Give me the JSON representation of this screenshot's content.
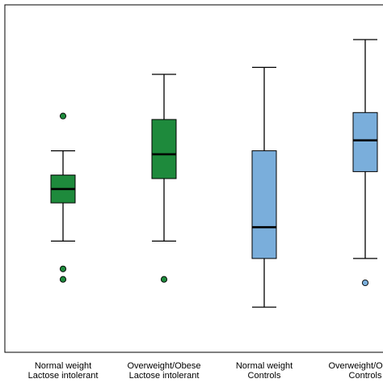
{
  "chart_data": {
    "type": "boxplot",
    "title": "",
    "xlabel": "",
    "ylabel": "",
    "y_axis_labels_visible": false,
    "ylim": [
      0,
      100
    ],
    "colors": {
      "lactose_intolerant": "#1e8a3c",
      "controls": "#7aaedb",
      "stroke": "#000000"
    },
    "categories": [
      {
        "line1": "Normal weight",
        "line2": "Lactose intolerant"
      },
      {
        "line1": "Overweight/Obese",
        "line2": "Lactose intolerant"
      },
      {
        "line1": "Normal weight",
        "line2": "Controls"
      },
      {
        "line1": "Overweight/Obese",
        "line2": "Controls"
      }
    ],
    "boxes": [
      {
        "group": "lactose_intolerant",
        "whisker_low": 32,
        "q1": 43,
        "median": 47,
        "q3": 51,
        "whisker_high": 58,
        "outliers": [
          68,
          24,
          21
        ]
      },
      {
        "group": "lactose_intolerant",
        "whisker_low": 32,
        "q1": 50,
        "median": 57,
        "q3": 67,
        "whisker_high": 80,
        "outliers": [
          21
        ]
      },
      {
        "group": "controls",
        "whisker_low": 13,
        "q1": 27,
        "median": 36,
        "q3": 58,
        "whisker_high": 82,
        "outliers": []
      },
      {
        "group": "controls",
        "whisker_low": 27,
        "q1": 52,
        "median": 61,
        "q3": 69,
        "whisker_high": 90,
        "outliers": [
          20
        ]
      }
    ]
  }
}
